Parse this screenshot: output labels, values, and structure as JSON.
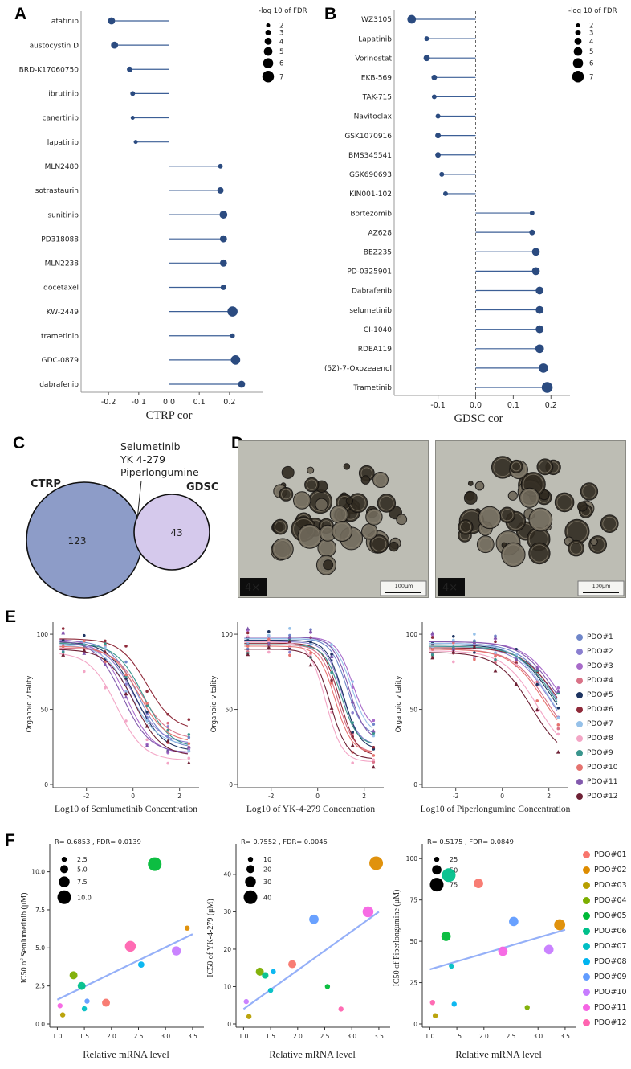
{
  "panel_labels": {
    "a": "A",
    "b": "B",
    "c": "C",
    "d": "D",
    "e": "E",
    "f": "F"
  },
  "panel_d": {
    "magnification": "4×",
    "scale_bar": "100μm"
  },
  "chart_data": [
    {
      "panel": "A",
      "type": "lollipop",
      "xlabel": "CTRP cor",
      "x_ticks": [
        "-0.2",
        "-0.1",
        "0.0",
        "0.1",
        "0.2"
      ],
      "xlim": [
        -0.28,
        0.28
      ],
      "size_legend": {
        "title": "-log 10 of FDR",
        "values": [
          2,
          3,
          4,
          5,
          6,
          7
        ]
      },
      "points": [
        {
          "label": "afatinib",
          "x": -0.19,
          "size": 4
        },
        {
          "label": "austocystin D",
          "x": -0.18,
          "size": 4
        },
        {
          "label": "BRD-K17060750",
          "x": -0.13,
          "size": 3
        },
        {
          "label": "ibrutinib",
          "x": -0.12,
          "size": 2.5
        },
        {
          "label": "canertinib",
          "x": -0.12,
          "size": 2
        },
        {
          "label": "lapatinib",
          "x": -0.11,
          "size": 2
        },
        {
          "label": "MLN2480",
          "x": 0.17,
          "size": 2.5
        },
        {
          "label": "sotrastaurin",
          "x": 0.17,
          "size": 3.5
        },
        {
          "label": "sunitinib",
          "x": 0.18,
          "size": 4.5
        },
        {
          "label": "PD318088",
          "x": 0.18,
          "size": 4
        },
        {
          "label": "MLN2238",
          "x": 0.18,
          "size": 4
        },
        {
          "label": "docetaxel",
          "x": 0.18,
          "size": 3
        },
        {
          "label": "KW-2449",
          "x": 0.21,
          "size": 6
        },
        {
          "label": "trametinib",
          "x": 0.21,
          "size": 2.5
        },
        {
          "label": "GDC-0879",
          "x": 0.22,
          "size": 5.5
        },
        {
          "label": "dabrafenib",
          "x": 0.24,
          "size": 4
        }
      ]
    },
    {
      "panel": "B",
      "type": "lollipop",
      "xlabel": "GDSC cor",
      "x_ticks": [
        "-0.1",
        "0.0",
        "0.1",
        "0.2"
      ],
      "xlim": [
        -0.21,
        0.225
      ],
      "size_legend": {
        "title": "-log 10 of FDR",
        "values": [
          2,
          3,
          4,
          5,
          6,
          7
        ]
      },
      "points": [
        {
          "label": "WZ3105",
          "x": -0.17,
          "size": 5
        },
        {
          "label": "Lapatinib",
          "x": -0.13,
          "size": 2.5
        },
        {
          "label": "Vorinostat",
          "x": -0.13,
          "size": 3.5
        },
        {
          "label": "EKB-569",
          "x": -0.11,
          "size": 3
        },
        {
          "label": "TAK-715",
          "x": -0.11,
          "size": 2.5
        },
        {
          "label": "Navitoclax",
          "x": -0.1,
          "size": 2.5
        },
        {
          "label": "GSK1070916",
          "x": -0.1,
          "size": 3
        },
        {
          "label": "BMS345541",
          "x": -0.1,
          "size": 3
        },
        {
          "label": "GSK690693",
          "x": -0.09,
          "size": 2.5
        },
        {
          "label": "KIN001-102",
          "x": -0.08,
          "size": 2.5
        },
        {
          "label": "Bortezomib",
          "x": 0.15,
          "size": 2.5
        },
        {
          "label": "AZ628",
          "x": 0.15,
          "size": 3
        },
        {
          "label": "BEZ235",
          "x": 0.16,
          "size": 4.5
        },
        {
          "label": "PD-0325901",
          "x": 0.16,
          "size": 4.5
        },
        {
          "label": "Dabrafenib",
          "x": 0.17,
          "size": 4.5
        },
        {
          "label": "selumetinib",
          "x": 0.17,
          "size": 4.5
        },
        {
          "label": "CI-1040",
          "x": 0.17,
          "size": 4.5
        },
        {
          "label": "RDEA119",
          "x": 0.17,
          "size": 5
        },
        {
          "label": "(5Z)-7-Oxozeaenol",
          "x": 0.18,
          "size": 5.5
        },
        {
          "label": "Trametinib",
          "x": 0.19,
          "size": 6.5
        }
      ]
    },
    {
      "panel": "C",
      "type": "venn",
      "sets": [
        {
          "label": "CTRP",
          "value": 123,
          "color": "#8d9cc8",
          "label_color": "#2e3f8f"
        },
        {
          "label": "GDSC",
          "value": 43,
          "color": "#d5c9ec",
          "label_color": "#8a6fc0"
        }
      ],
      "annotation": [
        "Selumetinib",
        "YK 4-279",
        "Piperlongumine"
      ]
    },
    {
      "panel": "E",
      "type": "line",
      "ylabel": "Organoid vitality",
      "y_ticks": [
        "0",
        "50",
        "100"
      ],
      "x_ticks": [
        "-2",
        "0",
        "2"
      ],
      "xlim": [
        -3.3,
        2.7
      ],
      "ylim": [
        0,
        107
      ],
      "series": [
        {
          "name": "PDO#1",
          "color": "#6f86c9"
        },
        {
          "name": "PDO#2",
          "color": "#8a7fd0"
        },
        {
          "name": "PDO#3",
          "color": "#a86bc9"
        },
        {
          "name": "PDO#4",
          "color": "#d97287"
        },
        {
          "name": "PDO#5",
          "color": "#1d3461"
        },
        {
          "name": "PDO#6",
          "color": "#8f2a3a"
        },
        {
          "name": "PDO#7",
          "color": "#96c1e9"
        },
        {
          "name": "PDO#8",
          "color": "#f3a6c6"
        },
        {
          "name": "PDO#9",
          "color": "#3a958d"
        },
        {
          "name": "PDO#10",
          "color": "#e5736f"
        },
        {
          "name": "PDO#11",
          "color": "#8259ad"
        },
        {
          "name": "PDO#12",
          "color": "#6e2135"
        }
      ],
      "charts": [
        {
          "xlabel": "Log10 of Semlumetinib Concentration",
          "slope": 0.75,
          "params": [
            [
              96,
              24,
              0.2
            ],
            [
              94,
              27,
              0.0
            ],
            [
              97,
              20,
              -0.3
            ],
            [
              91,
              30,
              0.35
            ],
            [
              95,
              22,
              0.1
            ],
            [
              97,
              36,
              0.6
            ],
            [
              93,
              26,
              -0.1
            ],
            [
              88,
              16,
              -0.7
            ],
            [
              94,
              24,
              0.45
            ],
            [
              92,
              28,
              0.25
            ],
            [
              96,
              21,
              -0.45
            ],
            [
              90,
              19,
              0.05
            ]
          ]
        },
        {
          "xlabel": "Log10 of YK-4-279 Concentration",
          "slope": 1.25,
          "params": [
            [
              97,
              32,
              1.25
            ],
            [
              95,
              26,
              1.05
            ],
            [
              98,
              36,
              1.5
            ],
            [
              93,
              21,
              0.85
            ],
            [
              96,
              23,
              1.1
            ],
            [
              94,
              19,
              0.95
            ],
            [
              97,
              33,
              1.45
            ],
            [
              95,
              15,
              0.35
            ],
            [
              93,
              26,
              1.0
            ],
            [
              92,
              21,
              0.75
            ],
            [
              98,
              29,
              1.35
            ],
            [
              90,
              17,
              0.55
            ]
          ]
        },
        {
          "xlabel": "Log10 of Piperlongumine Concentration",
          "slope": 0.6,
          "params": [
            [
              94,
              26,
              2.2
            ],
            [
              92,
              23,
              2.0
            ],
            [
              95,
              29,
              2.4
            ],
            [
              90,
              21,
              1.9
            ],
            [
              93,
              25,
              2.1
            ],
            [
              91,
              27,
              2.3
            ],
            [
              94,
              23,
              2.0
            ],
            [
              89,
              16,
              1.5
            ],
            [
              92,
              25,
              2.2
            ],
            [
              90,
              21,
              1.8
            ],
            [
              95,
              27,
              2.3
            ],
            [
              88,
              15,
              1.25
            ]
          ]
        }
      ]
    },
    {
      "panel": "F",
      "type": "scatter",
      "xlabel": "Relative mRNA level",
      "x_ticks": [
        "1.0",
        "1.5",
        "2.0",
        "2.5",
        "3.0",
        "3.5"
      ],
      "xlim": [
        0.92,
        3.62
      ],
      "palette": {
        "PDO#01": "#F8766D",
        "PDO#02": "#DE8C00",
        "PDO#03": "#B79F00",
        "PDO#04": "#7CAE00",
        "PDO#05": "#00BA38",
        "PDO#06": "#00C08B",
        "PDO#07": "#00BFC4",
        "PDO#08": "#00B4F0",
        "PDO#09": "#619CFF",
        "PDO#10": "#C77CFF",
        "PDO#11": "#F564E3",
        "PDO#12": "#FF64B0"
      },
      "legend_items": [
        "PDO#01",
        "PDO#02",
        "PDO#03",
        "PDO#04",
        "PDO#05",
        "PDO#06",
        "PDO#07",
        "PDO#08",
        "PDO#09",
        "PDO#10",
        "PDO#11",
        "PDO#12"
      ],
      "charts": [
        {
          "ylabel": "IC50 of Semlumetinib (μM)",
          "stats": "R= 0.6853 , FDR= 0.0139",
          "y_ticks": [
            "0.0",
            "2.5",
            "5.0",
            "7.5",
            "10.0"
          ],
          "ylim": [
            0,
            11.3
          ],
          "size_legend": [
            "2.5",
            "5.0",
            "7.5",
            "10.0"
          ],
          "trend": [
            [
              1.0,
              1.6
            ],
            [
              3.5,
              5.9
            ]
          ],
          "points": [
            {
              "pdo": "PDO#11",
              "x": 1.05,
              "y": 1.2,
              "size": 2.5
            },
            {
              "pdo": "PDO#03",
              "x": 1.1,
              "y": 0.6,
              "size": 2.5
            },
            {
              "pdo": "PDO#04",
              "x": 1.3,
              "y": 3.2,
              "size": 5.0
            },
            {
              "pdo": "PDO#06",
              "x": 1.45,
              "y": 2.5,
              "size": 5.0
            },
            {
              "pdo": "PDO#07",
              "x": 1.5,
              "y": 1.0,
              "size": 2.5
            },
            {
              "pdo": "PDO#09",
              "x": 1.55,
              "y": 1.5,
              "size": 2.5
            },
            {
              "pdo": "PDO#01",
              "x": 1.9,
              "y": 1.4,
              "size": 5.0
            },
            {
              "pdo": "PDO#12",
              "x": 2.35,
              "y": 5.1,
              "size": 7.5
            },
            {
              "pdo": "PDO#08",
              "x": 2.55,
              "y": 3.9,
              "size": 3.5
            },
            {
              "pdo": "PDO#05",
              "x": 2.8,
              "y": 10.5,
              "size": 10.0
            },
            {
              "pdo": "PDO#10",
              "x": 3.2,
              "y": 4.8,
              "size": 6.0
            },
            {
              "pdo": "PDO#02",
              "x": 3.4,
              "y": 6.3,
              "size": 2.5
            }
          ]
        },
        {
          "ylabel": "IC50 of YK-4-279 (μM)",
          "stats": "R= 0.7552 , FDR= 0.0045",
          "y_ticks": [
            "0",
            "10",
            "20",
            "30",
            "40"
          ],
          "ylim": [
            0,
            46
          ],
          "size_legend": [
            "10",
            "20",
            "30",
            "40"
          ],
          "trend": [
            [
              1.0,
              4
            ],
            [
              3.5,
              30
            ]
          ],
          "points": [
            {
              "pdo": "PDO#10",
              "x": 1.05,
              "y": 6,
              "size": 10
            },
            {
              "pdo": "PDO#03",
              "x": 1.1,
              "y": 2,
              "size": 10
            },
            {
              "pdo": "PDO#04",
              "x": 1.3,
              "y": 14,
              "size": 20
            },
            {
              "pdo": "PDO#06",
              "x": 1.4,
              "y": 13,
              "size": 15
            },
            {
              "pdo": "PDO#07",
              "x": 1.5,
              "y": 9,
              "size": 10
            },
            {
              "pdo": "PDO#08",
              "x": 1.55,
              "y": 14,
              "size": 10
            },
            {
              "pdo": "PDO#01",
              "x": 1.9,
              "y": 16,
              "size": 20
            },
            {
              "pdo": "PDO#09",
              "x": 2.3,
              "y": 28,
              "size": 25
            },
            {
              "pdo": "PDO#05",
              "x": 2.55,
              "y": 10,
              "size": 10
            },
            {
              "pdo": "PDO#12",
              "x": 2.8,
              "y": 4,
              "size": 10
            },
            {
              "pdo": "PDO#11",
              "x": 3.3,
              "y": 30,
              "size": 30
            },
            {
              "pdo": "PDO#02",
              "x": 3.45,
              "y": 43,
              "size": 40
            }
          ]
        },
        {
          "ylabel": "IC50 of Piperlongumine (μM)",
          "stats": "R= 0.5175 , FDR= 0.0849",
          "y_ticks": [
            "0",
            "25",
            "50",
            "75",
            "100"
          ],
          "ylim": [
            0,
            104
          ],
          "size_legend": [
            "25",
            "50",
            "75"
          ],
          "trend": [
            [
              1.0,
              33
            ],
            [
              3.5,
              57
            ]
          ],
          "points": [
            {
              "pdo": "PDO#12",
              "x": 1.05,
              "y": 13,
              "size": 25
            },
            {
              "pdo": "PDO#03",
              "x": 1.1,
              "y": 5,
              "size": 25
            },
            {
              "pdo": "PDO#05",
              "x": 1.3,
              "y": 53,
              "size": 50
            },
            {
              "pdo": "PDO#06",
              "x": 1.35,
              "y": 90,
              "size": 75
            },
            {
              "pdo": "PDO#07",
              "x": 1.4,
              "y": 35,
              "size": 25
            },
            {
              "pdo": "PDO#08",
              "x": 1.45,
              "y": 12,
              "size": 25
            },
            {
              "pdo": "PDO#01",
              "x": 1.9,
              "y": 85,
              "size": 50
            },
            {
              "pdo": "PDO#11",
              "x": 2.35,
              "y": 44,
              "size": 50
            },
            {
              "pdo": "PDO#09",
              "x": 2.55,
              "y": 62,
              "size": 50
            },
            {
              "pdo": "PDO#04",
              "x": 2.8,
              "y": 10,
              "size": 25
            },
            {
              "pdo": "PDO#10",
              "x": 3.2,
              "y": 45,
              "size": 50
            },
            {
              "pdo": "PDO#02",
              "x": 3.4,
              "y": 60,
              "size": 60
            }
          ]
        }
      ]
    }
  ]
}
